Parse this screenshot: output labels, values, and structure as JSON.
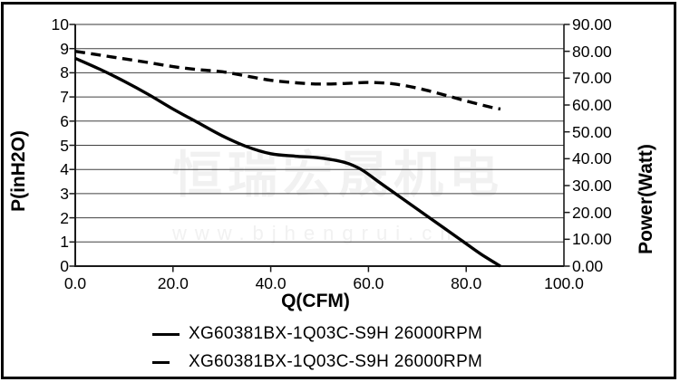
{
  "watermark": {
    "cn_text": "恒瑞宏晟机电",
    "url_text": "www.bjhengrui.cn"
  },
  "colors": {
    "curve": "#000000",
    "gridline": "#404040",
    "axis": "#1a1a1a",
    "plot_top_border": "#9b9b9b",
    "watermark": "#f1f1f1",
    "background": "#ffffff",
    "image_border": "#000000"
  },
  "chart_data": {
    "type": "line",
    "title": "",
    "xlabel": "Q(CFM)",
    "ylabel_left": "P(inH2O)",
    "ylabel_right": "Power(Watt)",
    "x_range": [
      0,
      100
    ],
    "y_left_range": [
      0,
      10
    ],
    "y_right_range": [
      0,
      90
    ],
    "grid": "horizontal",
    "legend_position": "bottom",
    "x_tick_values": [
      0,
      20,
      40,
      60,
      80,
      100
    ],
    "x_tick_labels": [
      "0.0",
      "20.0",
      "40.0",
      "60.0",
      "80.0",
      "100.0"
    ],
    "y_left_tick_values": [
      0,
      1,
      2,
      3,
      4,
      5,
      6,
      7,
      8,
      9,
      10
    ],
    "y_left_tick_labels": [
      "0",
      "1",
      "2",
      "3",
      "4",
      "5",
      "6",
      "7",
      "8",
      "9",
      "10"
    ],
    "y_right_tick_values": [
      0,
      10,
      20,
      30,
      40,
      50,
      60,
      70,
      80,
      90
    ],
    "y_right_tick_labels": [
      "0.00",
      "10.00",
      "20.00",
      "30.00",
      "40.00",
      "50.00",
      "60.00",
      "70.00",
      "80.00",
      "90.00"
    ],
    "series": [
      {
        "name": "XG60381BX-1Q03C-S9H 26000RPM",
        "style": "solid",
        "axis": "left",
        "points": [
          [
            0,
            8.6
          ],
          [
            5,
            8.15
          ],
          [
            10,
            7.65
          ],
          [
            15,
            7.1
          ],
          [
            20,
            6.5
          ],
          [
            25,
            5.95
          ],
          [
            30,
            5.4
          ],
          [
            35,
            4.95
          ],
          [
            40,
            4.65
          ],
          [
            45,
            4.55
          ],
          [
            50,
            4.48
          ],
          [
            55,
            4.3
          ],
          [
            58.5,
            4.0
          ],
          [
            62,
            3.5
          ],
          [
            65.5,
            3.0
          ],
          [
            69,
            2.5
          ],
          [
            72.5,
            2.0
          ],
          [
            76,
            1.5
          ],
          [
            79.5,
            1.0
          ],
          [
            83,
            0.5
          ],
          [
            87,
            0
          ]
        ]
      },
      {
        "name": "XG60381BX-1Q03C-S9H 26000RPM",
        "style": "dashed",
        "axis": "right",
        "points": [
          [
            0,
            80
          ],
          [
            5,
            78.6
          ],
          [
            10,
            77.2
          ],
          [
            15,
            75.8
          ],
          [
            20,
            74.3
          ],
          [
            25,
            73.2
          ],
          [
            30,
            72.4
          ],
          [
            35,
            70.8
          ],
          [
            40,
            69.2
          ],
          [
            45,
            68.3
          ],
          [
            50,
            67.8
          ],
          [
            55,
            68.0
          ],
          [
            60,
            68.4
          ],
          [
            65,
            67.9
          ],
          [
            70,
            66.3
          ],
          [
            75,
            64.0
          ],
          [
            80,
            61.5
          ],
          [
            85,
            59.2
          ],
          [
            87,
            58.5
          ]
        ]
      }
    ]
  }
}
